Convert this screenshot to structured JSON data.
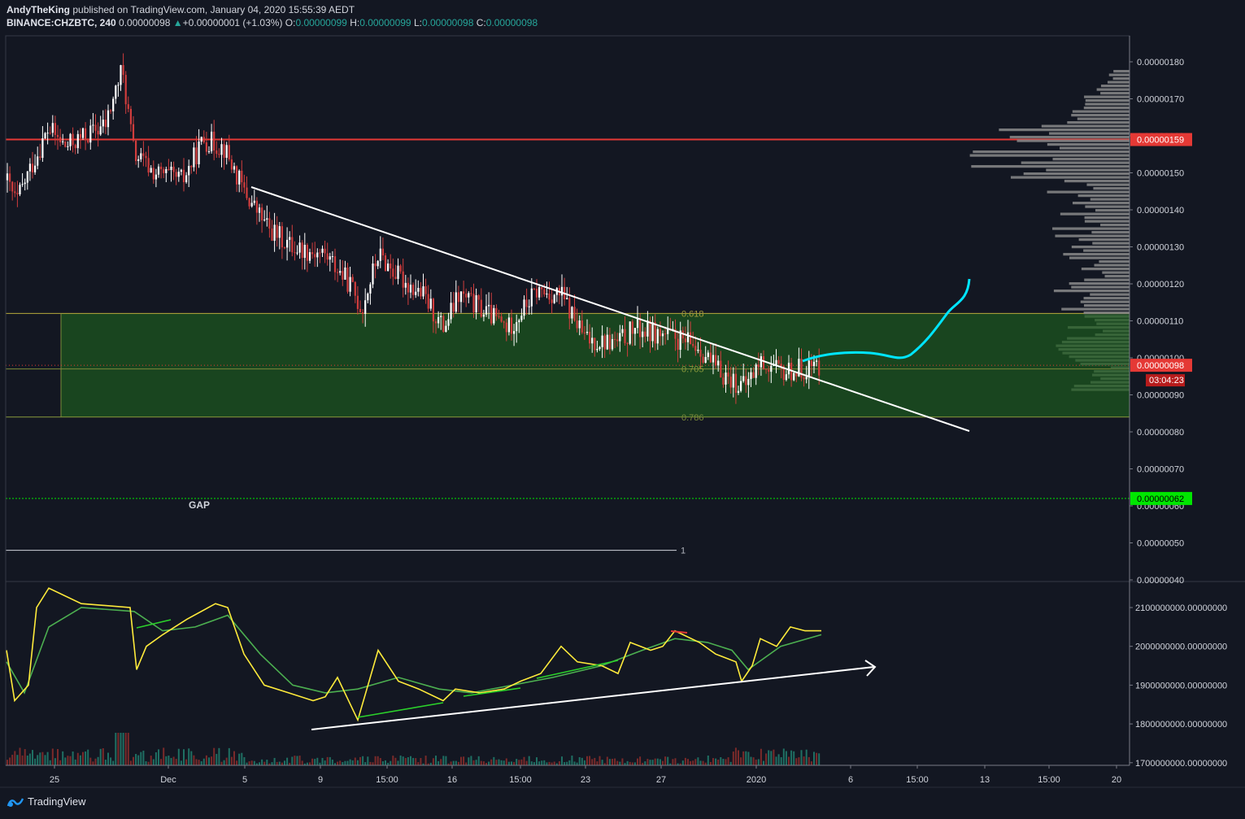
{
  "header": {
    "author": "AndyTheKing",
    "published": "published on TradingView.com, January 04, 2020 15:55:39 AEDT",
    "symbol": "BINANCE:CHZBTC, 240",
    "last": "0.00000098",
    "change": "+0.00000001 (+1.03%)",
    "open_label": "O:",
    "open": "0.00000099",
    "high_label": "H:",
    "high": "0.00000099",
    "low_label": "L:",
    "low": "0.00000098",
    "close_label": "C:",
    "close": "0.00000098"
  },
  "footer": {
    "brand": "TradingView"
  },
  "colors": {
    "background": "#131722",
    "up": "#ffffff",
    "down": "#d13d3d",
    "resistance": "#e53935",
    "support_gap": "#00e600",
    "zone_fill": "#1b4d1e",
    "projection": "#00e5ff",
    "oscillator": "#ffeb3b",
    "oscillator_ma": "#4caf50",
    "divergence": "#2bd12b"
  },
  "chart_data": [
    {
      "type": "candlestick",
      "title": "BINANCE:CHZBTC, 240",
      "ylim": [
        4e-07,
        1.84e-06
      ],
      "y_ticks": [
        "0.00000180",
        "0.00000170",
        "0.00000160",
        "0.00000150",
        "0.00000140",
        "0.00000130",
        "0.00000120",
        "0.00000110",
        "0.00000100",
        "0.00000090",
        "0.00000080",
        "0.00000070",
        "0.00000060",
        "0.00000050",
        "0.00000040"
      ],
      "x_ticks": [
        "25",
        "Dec",
        "5",
        "9",
        "15:00",
        "16",
        "15:00",
        "23",
        "27",
        "2020",
        "6",
        "15:00",
        "13",
        "15:00",
        "20"
      ],
      "price_labels": {
        "resistance": "0.00000159",
        "last": "0.00000098",
        "countdown": "03:04:23",
        "gap": "0.00000062"
      },
      "fibonacci": [
        {
          "level": "0.618",
          "price": 1.12e-06
        },
        {
          "level": "0.705",
          "price": 9.7e-07
        },
        {
          "level": "0.786",
          "price": 8.4e-07
        },
        {
          "level": "1",
          "price": 4.8e-07
        }
      ],
      "annotations": {
        "gap": "GAP"
      },
      "resistance_price": 1.59e-06,
      "gap_price": 6.2e-07,
      "last_price": 9.8e-07
    },
    {
      "type": "line",
      "ylim": [
        1700000000,
        2120000000
      ],
      "y_ticks": [
        "2100000000.00000000",
        "2000000000.00000000",
        "1900000000.00000000",
        "1800000000.00000000",
        "1700000000.00000000"
      ]
    }
  ]
}
